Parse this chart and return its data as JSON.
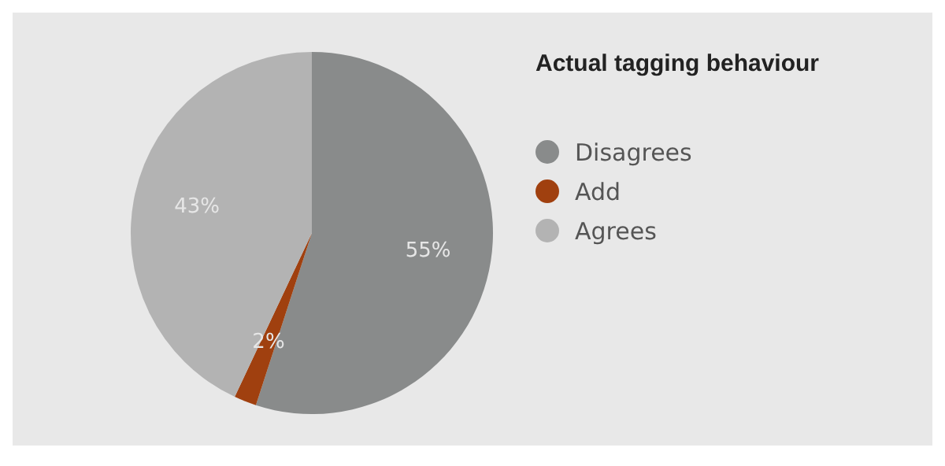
{
  "chart_data": {
    "type": "pie",
    "title": "Actual tagging behaviour",
    "categories": [
      "Disagrees",
      "Add",
      "Agrees"
    ],
    "values": [
      55,
      2,
      43
    ],
    "colors": [
      "#898b8b",
      "#a0400f",
      "#b3b3b3"
    ],
    "value_labels": [
      "55%",
      "2%",
      "43%"
    ],
    "legend": "right"
  }
}
